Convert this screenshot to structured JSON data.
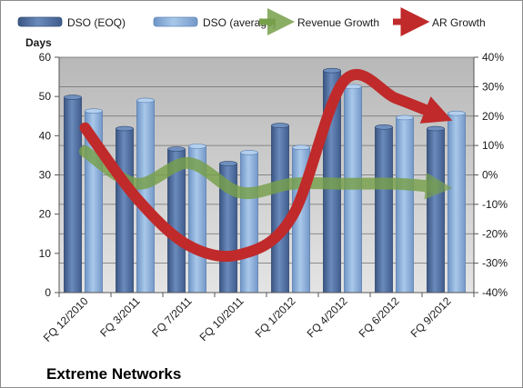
{
  "chart_data": {
    "type": "bar",
    "company": "Extreme Networks",
    "ylabel_left": "Days",
    "ylim_left": [
      0,
      60
    ],
    "yticks_left": [
      "0",
      "10",
      "20",
      "30",
      "40",
      "50",
      "60"
    ],
    "ylim_right": [
      -40,
      40
    ],
    "yticks_right": [
      "-40%",
      "-30%",
      "-20%",
      "-10%",
      "0%",
      "10%",
      "20%",
      "30%",
      "40%"
    ],
    "categories": [
      "FQ 12/2010",
      "FQ 3/2011",
      "FQ 7/2011",
      "FQ 10/2011",
      "FQ 1/2012",
      "FQ 4/2012",
      "FQ 6/2012",
      "FQ 9/2012"
    ],
    "grid": true,
    "legend_position": "top",
    "series": [
      {
        "name": "DSO (EOQ)",
        "kind": "bar",
        "axis": "left",
        "color": "#4f6d9e",
        "values": [
          49.8,
          41.8,
          36.6,
          32.9,
          42.6,
          56.6,
          42.2,
          41.8
        ]
      },
      {
        "name": "DSO (average)",
        "kind": "bar",
        "axis": "left",
        "color": "#8fb3dc",
        "values": [
          46.3,
          49.0,
          37.3,
          35.7,
          37.0,
          52.5,
          44.6,
          45.7
        ]
      },
      {
        "name": "Revenue Growth",
        "kind": "line",
        "axis": "right",
        "color": "#77a04a",
        "values": [
          8,
          -3,
          4,
          -6,
          -3,
          -3,
          -3,
          -4
        ]
      },
      {
        "name": "AR Growth",
        "kind": "line",
        "axis": "right",
        "color": "#c02a2a",
        "values": [
          16,
          -8,
          -24,
          -27,
          -14,
          32,
          26,
          21
        ]
      }
    ]
  }
}
